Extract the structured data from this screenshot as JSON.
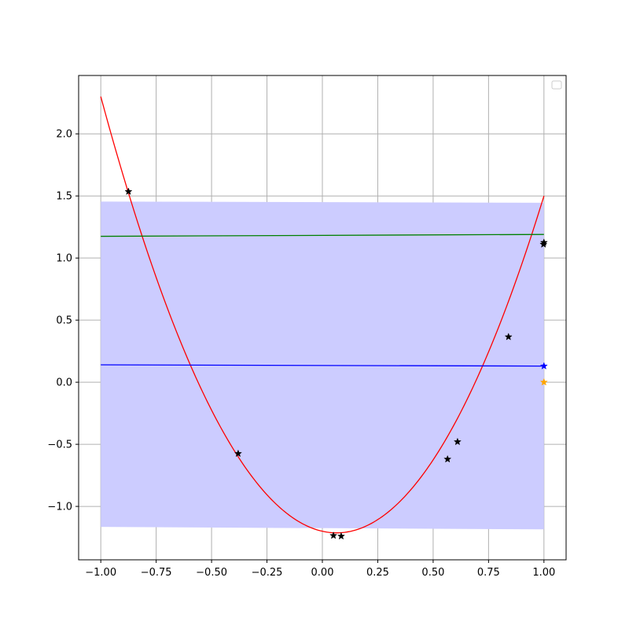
{
  "chart_data": {
    "type": "line",
    "xlim": [
      -1.1,
      1.1
    ],
    "ylim": [
      -1.43,
      2.47
    ],
    "x_ticks": [
      {
        "value": -1.0,
        "label": "−1.00"
      },
      {
        "value": -0.75,
        "label": "−0.75"
      },
      {
        "value": -0.5,
        "label": "−0.50"
      },
      {
        "value": -0.25,
        "label": "−0.25"
      },
      {
        "value": 0.0,
        "label": "0.00"
      },
      {
        "value": 0.25,
        "label": "0.25"
      },
      {
        "value": 0.5,
        "label": "0.50"
      },
      {
        "value": 0.75,
        "label": "0.75"
      },
      {
        "value": 1.0,
        "label": "1.00"
      }
    ],
    "y_ticks": [
      {
        "value": -1.0,
        "label": "−1.0"
      },
      {
        "value": -0.5,
        "label": "−0.5"
      },
      {
        "value": 0.0,
        "label": "0.0"
      },
      {
        "value": 0.5,
        "label": "0.5"
      },
      {
        "value": 1.0,
        "label": "1.0"
      },
      {
        "value": 1.5,
        "label": "1.5"
      },
      {
        "value": 2.0,
        "label": "2.0"
      }
    ],
    "grid": true,
    "legend": "top-right (empty)",
    "confidence_band": {
      "color": "#ccccff",
      "x": [
        -1.0,
        1.0
      ],
      "upper": [
        1.455,
        1.445
      ],
      "lower": [
        -1.165,
        -1.185
      ]
    },
    "series": [
      {
        "kind": "curve",
        "color": "#ff0000",
        "coefficients": [
          -1.2,
          -0.4,
          3.1
        ],
        "x_range": [
          -1.0,
          1.0
        ]
      },
      {
        "kind": "line",
        "color": "#008000",
        "x": [
          -1.0,
          1.0
        ],
        "y": [
          1.175,
          1.19
        ]
      },
      {
        "kind": "line",
        "color": "#0000ff",
        "x": [
          -1.0,
          1.0
        ],
        "y": [
          0.14,
          0.13
        ]
      }
    ],
    "markers": [
      {
        "x": -0.875,
        "y": 1.535,
        "color": "#000000"
      },
      {
        "x": -0.38,
        "y": -0.575,
        "color": "#000000"
      },
      {
        "x": 0.05,
        "y": -1.235,
        "color": "#000000"
      },
      {
        "x": 0.085,
        "y": -1.24,
        "color": "#000000"
      },
      {
        "x": 0.565,
        "y": -0.62,
        "color": "#000000"
      },
      {
        "x": 0.61,
        "y": -0.48,
        "color": "#000000"
      },
      {
        "x": 0.84,
        "y": 0.365,
        "color": "#000000"
      },
      {
        "x": 0.998,
        "y": 1.11,
        "color": "#000000"
      },
      {
        "x": 1.0,
        "y": 1.125,
        "color": "#000000"
      },
      {
        "x": 1.0,
        "y": 0.13,
        "color": "#0000ff"
      },
      {
        "x": 1.0,
        "y": 0.0,
        "color": "#ffa500"
      }
    ]
  }
}
